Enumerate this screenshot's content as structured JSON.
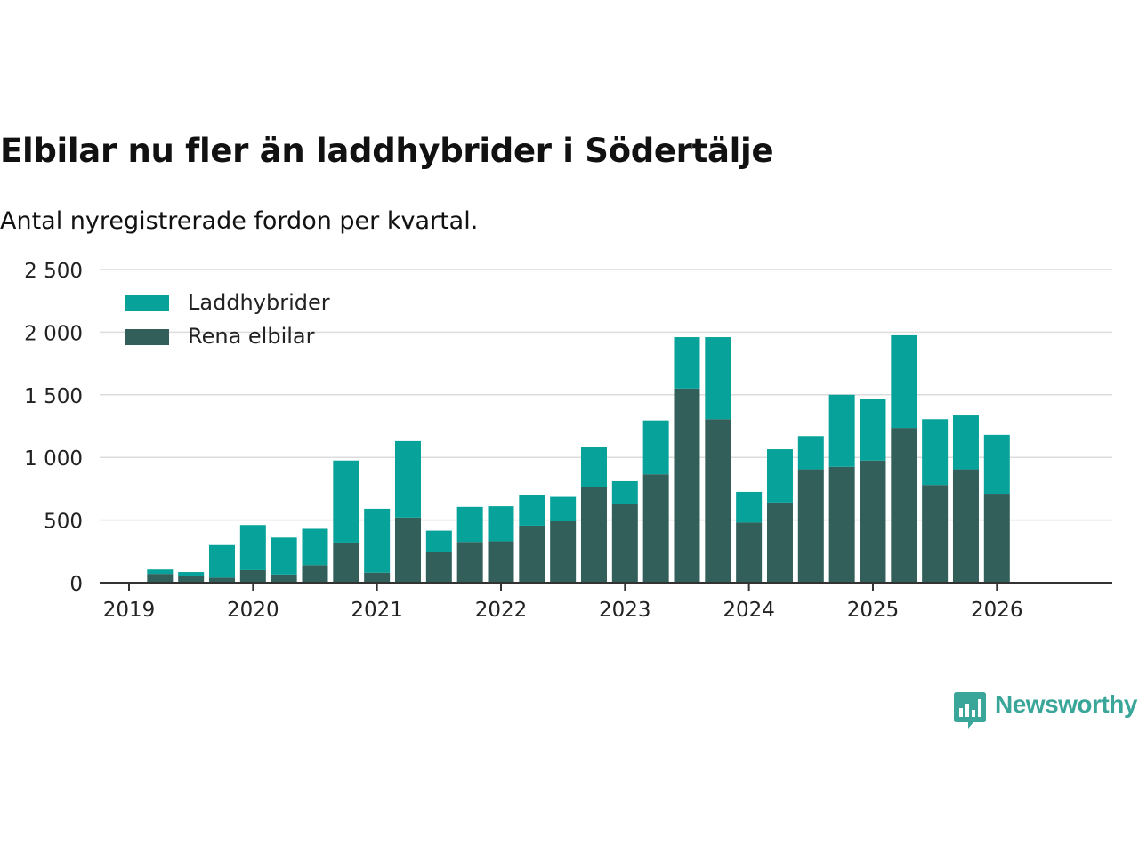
{
  "title": "Elbilar nu fler än laddhybrider i Södertälje",
  "subtitle": "Antal nyregistrerade fordon per kvartal.",
  "brand": {
    "name": "Newsworthy",
    "color": "#3aa699"
  },
  "chart_data": {
    "type": "bar",
    "stacked": true,
    "title": "Elbilar nu fler än laddhybrider i Södertälje",
    "subtitle": "Antal nyregistrerade fordon per kvartal.",
    "xlabel": "",
    "ylabel": "",
    "ylim": [
      0,
      2500
    ],
    "grid": true,
    "legend_position": "top-left",
    "x_start": 2019.0,
    "x_end": 2026.45,
    "x_step": 0.25,
    "yticks": [
      0,
      500,
      1000,
      1500,
      2000,
      2500
    ],
    "ytick_labels": [
      "0",
      "500",
      "1 000",
      "1 500",
      "2 000",
      "2 500"
    ],
    "xticks": [
      2019,
      2020,
      2021,
      2022,
      2023,
      2024,
      2025,
      2026
    ],
    "xtick_labels": [
      "2019",
      "2020",
      "2021",
      "2022",
      "2023",
      "2024",
      "2025",
      "2026"
    ],
    "categories": [
      "2019 Q2",
      "2019 Q3",
      "2019 Q4",
      "2020 Q1",
      "2020 Q2",
      "2020 Q3",
      "2020 Q4",
      "2021 Q1",
      "2021 Q2",
      "2021 Q3",
      "2021 Q4",
      "2022 Q1",
      "2022 Q2",
      "2022 Q3",
      "2022 Q4",
      "2023 Q1",
      "2023 Q2",
      "2023 Q3",
      "2023 Q4",
      "2024 Q1",
      "2024 Q2",
      "2024 Q3",
      "2024 Q4",
      "2025 Q1",
      "2025 Q2",
      "2025 Q3",
      "2025 Q4",
      "2026 Q1"
    ],
    "series": [
      {
        "name": "Rena elbilar",
        "color": "#335f5b",
        "values": [
          70,
          50,
          40,
          100,
          65,
          140,
          320,
          80,
          520,
          245,
          325,
          330,
          455,
          490,
          765,
          630,
          865,
          1550,
          1305,
          480,
          640,
          905,
          925,
          975,
          1235,
          780,
          905,
          710
        ]
      },
      {
        "name": "Laddhybrider",
        "color": "#07a39b",
        "values": [
          35,
          35,
          260,
          360,
          295,
          290,
          655,
          510,
          610,
          170,
          280,
          280,
          245,
          195,
          315,
          180,
          430,
          410,
          655,
          245,
          425,
          265,
          575,
          495,
          740,
          525,
          430,
          470
        ]
      }
    ]
  }
}
